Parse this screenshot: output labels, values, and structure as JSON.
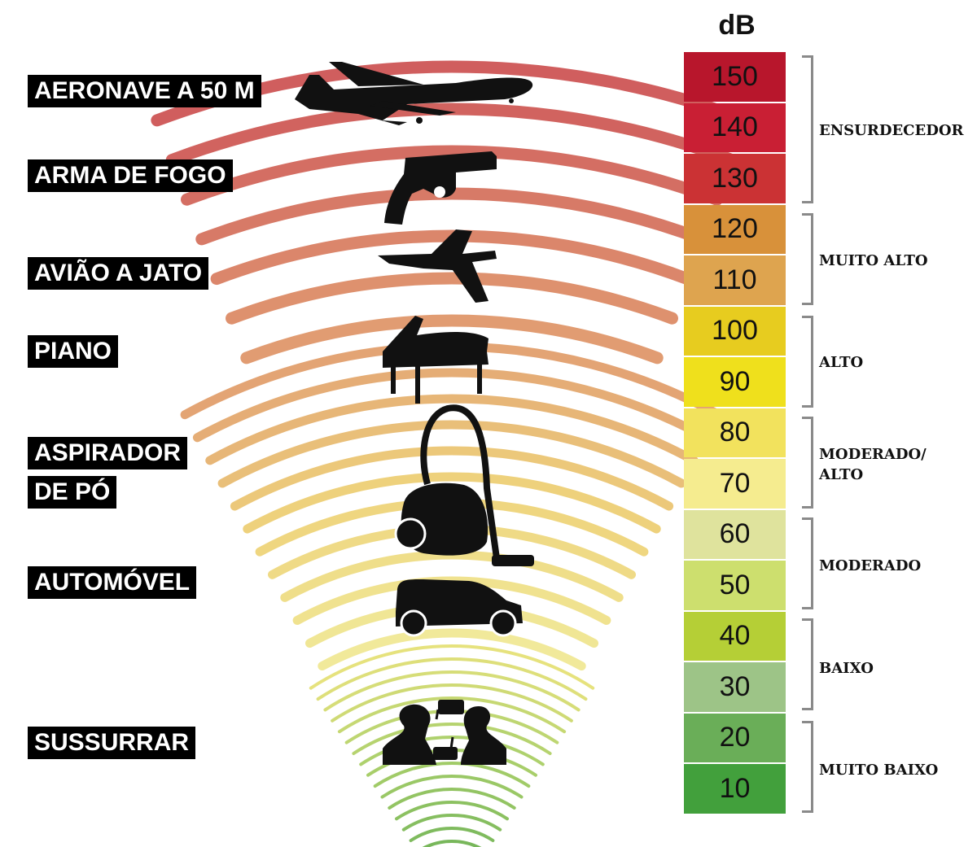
{
  "scale": {
    "unit": "dB",
    "levels": [
      {
        "value": "150",
        "color": "#b8162c"
      },
      {
        "value": "140",
        "color": "#c91f34"
      },
      {
        "value": "130",
        "color": "#cb3234"
      },
      {
        "value": "120",
        "color": "#d8913a"
      },
      {
        "value": "110",
        "color": "#dea44f"
      },
      {
        "value": "100",
        "color": "#e7cc1f"
      },
      {
        "value": "90",
        "color": "#efe01c"
      },
      {
        "value": "80",
        "color": "#f2e25d"
      },
      {
        "value": "70",
        "color": "#f5ec8f"
      },
      {
        "value": "60",
        "color": "#dfe39d"
      },
      {
        "value": "50",
        "color": "#cddf6e"
      },
      {
        "value": "40",
        "color": "#b5cf36"
      },
      {
        "value": "30",
        "color": "#9dc487"
      },
      {
        "value": "20",
        "color": "#6aae58"
      },
      {
        "value": "10",
        "color": "#42a03c"
      }
    ]
  },
  "categories": [
    {
      "label": "ENSURDECEDOR"
    },
    {
      "label": "MUITO ALTO"
    },
    {
      "label": "ALTO"
    },
    {
      "label": "MODERADO/\nALTO"
    },
    {
      "label": "MODERADO"
    },
    {
      "label": "BAIXO"
    },
    {
      "label": "MUITO BAIXO"
    }
  ],
  "sources": [
    {
      "label": "AERONAVE A 50 M",
      "icon": "airliner-icon"
    },
    {
      "label": "ARMA DE FOGO",
      "icon": "revolver-icon"
    },
    {
      "label": "AVIÃO A JATO",
      "icon": "fighter-jet-icon"
    },
    {
      "label": "PIANO",
      "icon": "grand-piano-icon"
    },
    {
      "label": "ASPIRADOR",
      "icon": "vacuum-cleaner-icon"
    },
    {
      "label": "DE PÓ"
    },
    {
      "label": "AUTOMÓVEL",
      "icon": "car-icon"
    },
    {
      "label": "SUSSURRAR",
      "icon": "whispering-people-icon"
    }
  ]
}
